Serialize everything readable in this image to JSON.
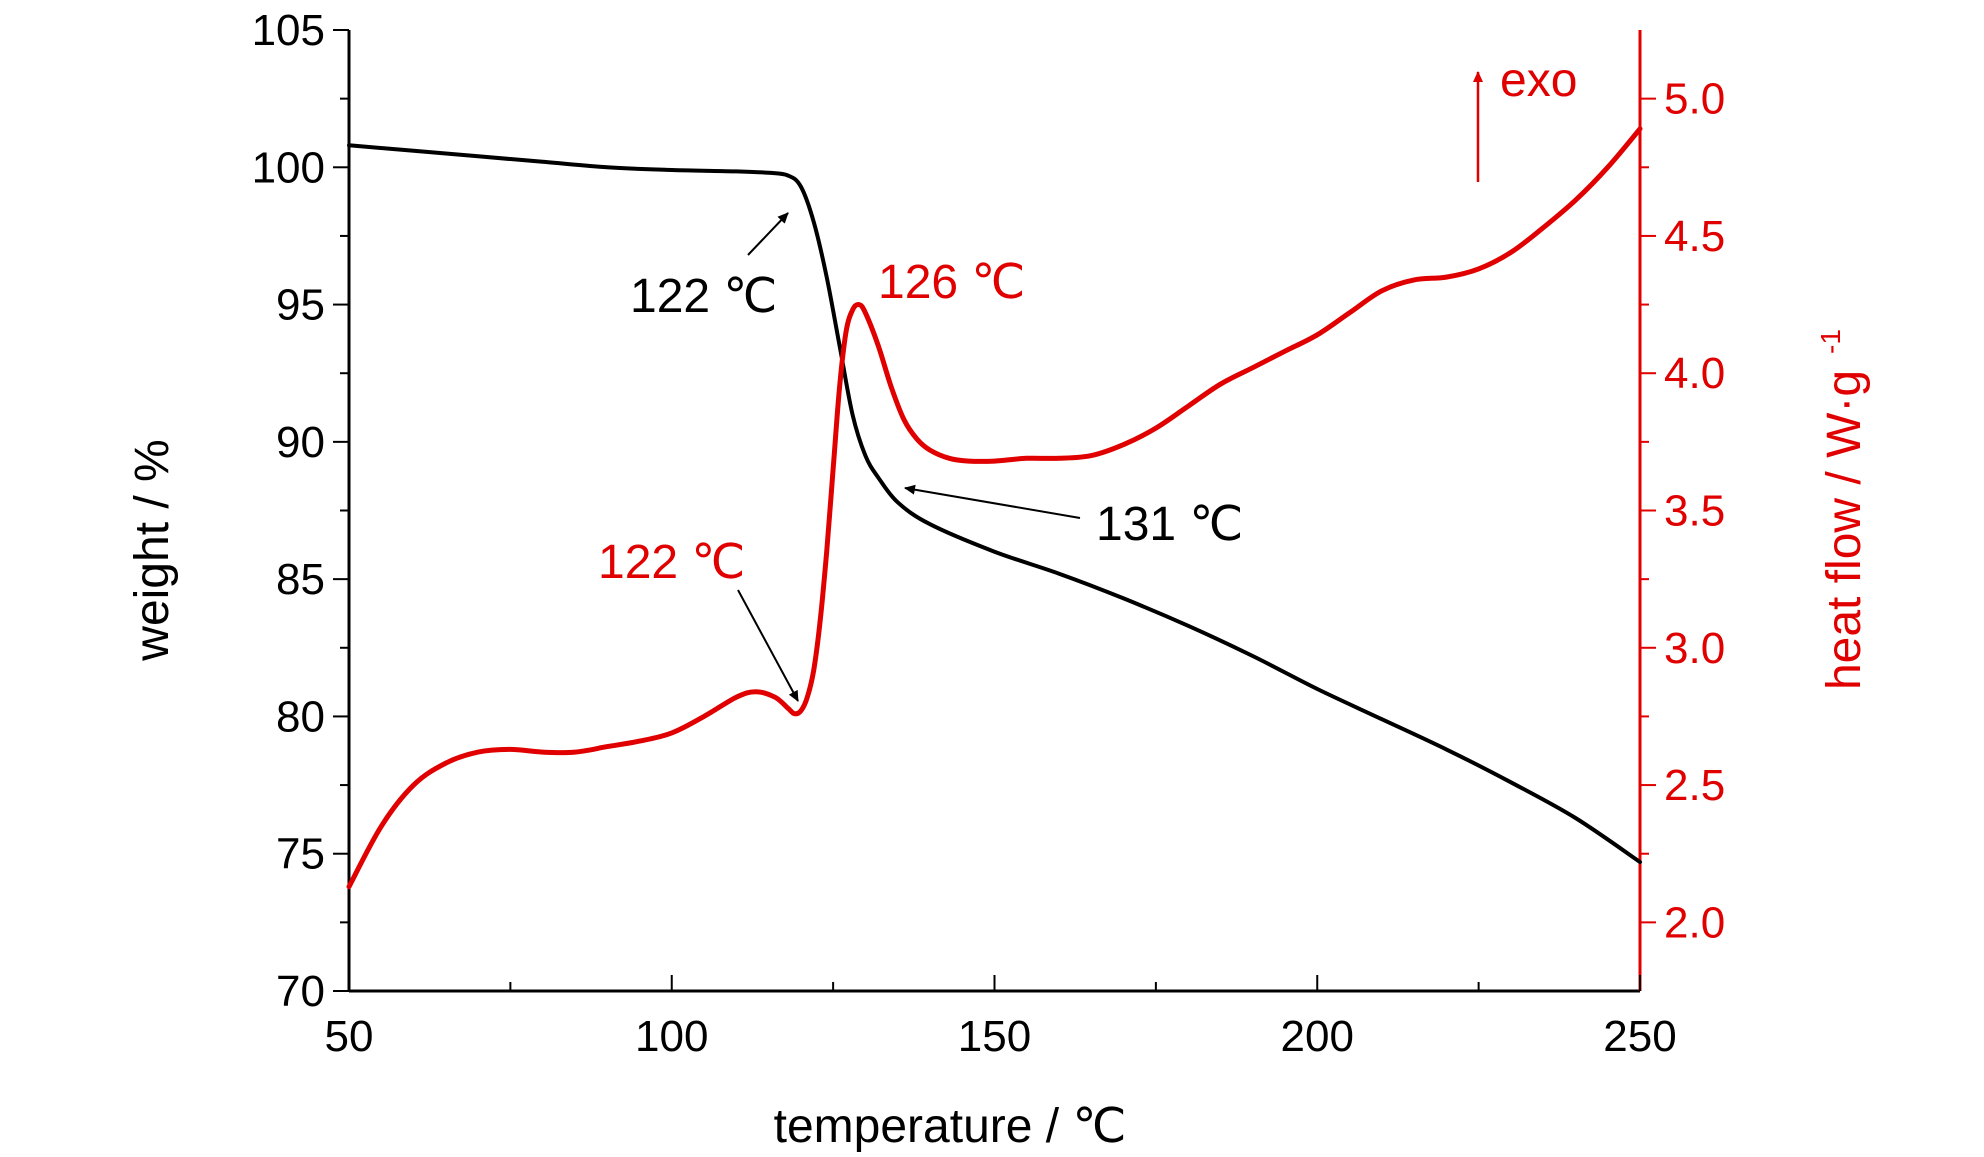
{
  "chart_data": {
    "type": "line",
    "xlabel": "temperature / ℃",
    "ylabel_left": "weight / %",
    "ylabel_right": "heat flow / W·g",
    "ylabel_right_sup": "-1",
    "xlim": [
      50,
      250
    ],
    "ylim_left": [
      70,
      105
    ],
    "ylim_right": [
      1.75,
      5.25
    ],
    "x_ticks": [
      "50",
      "100",
      "150",
      "200",
      "250"
    ],
    "y_left_ticks": [
      "70",
      "75",
      "80",
      "85",
      "90",
      "95",
      "100",
      "105"
    ],
    "y_right_ticks": [
      "2.0",
      "2.5",
      "3.0",
      "3.5",
      "4.0",
      "4.5",
      "5.0"
    ],
    "exo_label": "exo",
    "series": [
      {
        "axis": "left",
        "color": "#000000",
        "x": [
          50,
          60,
          70,
          80,
          90,
          100,
          110,
          115,
          118,
          120,
          122,
          124,
          126,
          128,
          130,
          132,
          135,
          140,
          150,
          160,
          170,
          180,
          190,
          200,
          210,
          220,
          230,
          240,
          250
        ],
        "y": [
          100.8,
          100.6,
          100.4,
          100.2,
          100.0,
          99.9,
          99.85,
          99.8,
          99.7,
          99.3,
          98.0,
          96.0,
          93.5,
          91.0,
          89.5,
          88.7,
          87.8,
          87.0,
          86.0,
          85.2,
          84.3,
          83.3,
          82.2,
          81.0,
          79.9,
          78.8,
          77.6,
          76.3,
          74.7
        ]
      },
      {
        "axis": "right",
        "color": "#e00000",
        "x": [
          50,
          55,
          60,
          65,
          70,
          75,
          80,
          85,
          90,
          95,
          100,
          105,
          110,
          113,
          116,
          118,
          119,
          120,
          121,
          122,
          123,
          124,
          125,
          126,
          127,
          128,
          129,
          130,
          132,
          134,
          136,
          138,
          140,
          143,
          146,
          150,
          155,
          160,
          165,
          170,
          175,
          180,
          185,
          190,
          195,
          200,
          205,
          210,
          215,
          220,
          225,
          230,
          235,
          240,
          245,
          250
        ],
        "y": [
          2.13,
          2.35,
          2.5,
          2.58,
          2.62,
          2.63,
          2.62,
          2.62,
          2.64,
          2.66,
          2.69,
          2.75,
          2.82,
          2.84,
          2.82,
          2.78,
          2.76,
          2.77,
          2.82,
          2.92,
          3.1,
          3.35,
          3.65,
          3.95,
          4.15,
          4.23,
          4.25,
          4.22,
          4.1,
          3.95,
          3.83,
          3.76,
          3.72,
          3.69,
          3.68,
          3.68,
          3.69,
          3.69,
          3.7,
          3.74,
          3.8,
          3.88,
          3.96,
          4.02,
          4.08,
          4.14,
          4.22,
          4.3,
          4.34,
          4.35,
          4.38,
          4.44,
          4.53,
          4.63,
          4.75,
          4.89
        ]
      }
    ],
    "annotations": [
      {
        "text": "122 ℃",
        "color": "#000000"
      },
      {
        "text": "131 ℃",
        "color": "#000000"
      },
      {
        "text": "126 ℃",
        "color": "#e00000"
      },
      {
        "text": "122 ℃",
        "color": "#e00000"
      }
    ]
  }
}
